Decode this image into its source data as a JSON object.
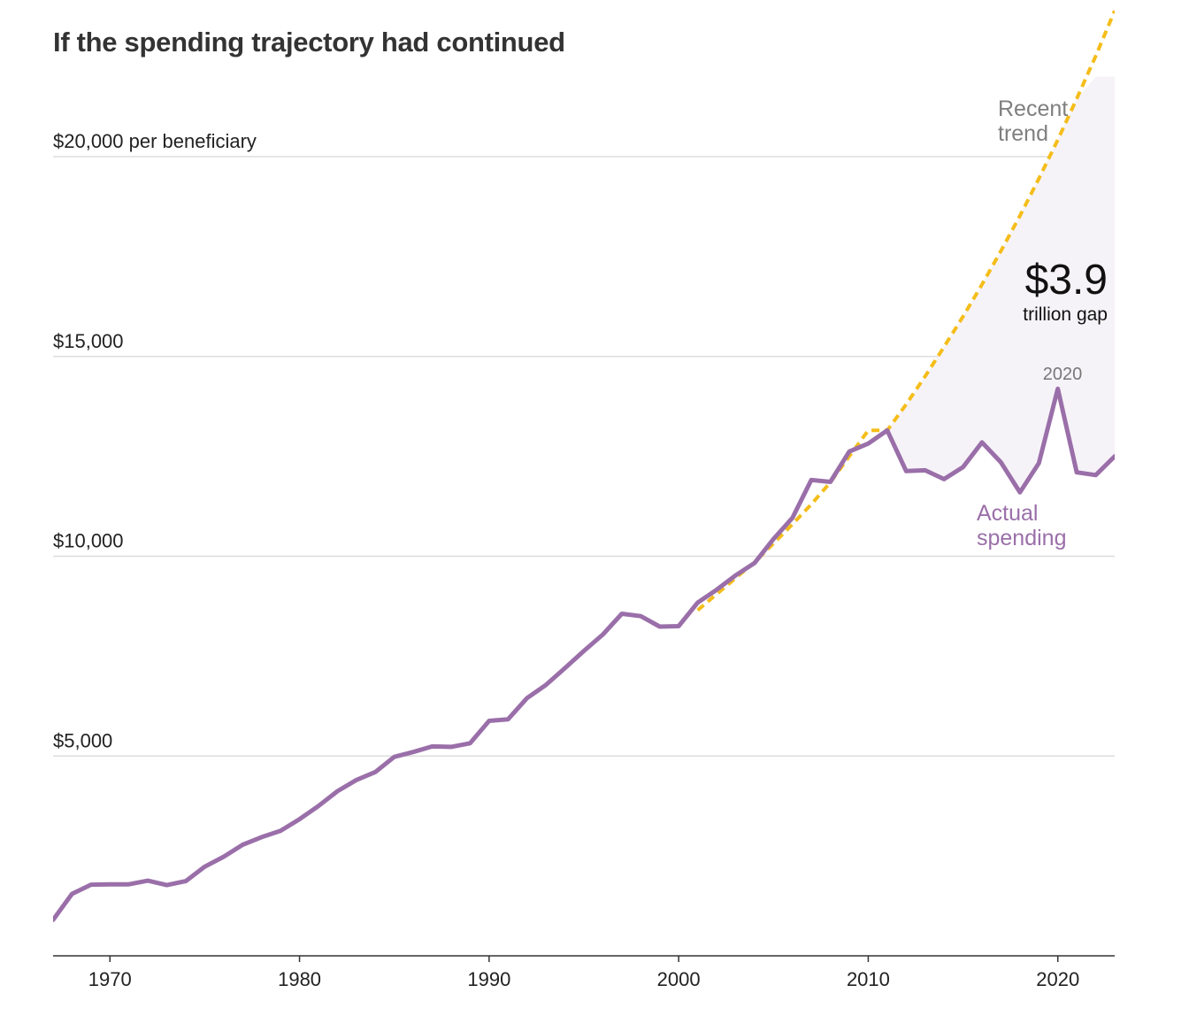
{
  "title": "If the spending trajectory had continued",
  "chart_data": {
    "type": "line",
    "title": "If the spending trajectory had continued",
    "ylim": [
      0,
      22000
    ],
    "xlim": [
      1967,
      2023
    ],
    "y_ticks": [
      {
        "value": 5000,
        "label": "$5,000"
      },
      {
        "value": 10000,
        "label": "$10,000"
      },
      {
        "value": 15000,
        "label": "$15,000"
      },
      {
        "value": 20000,
        "label": "$20,000 per beneficiary"
      }
    ],
    "x_ticks": [
      {
        "value": 1970,
        "label": "1970"
      },
      {
        "value": 1980,
        "label": "1980"
      },
      {
        "value": 1990,
        "label": "1990"
      },
      {
        "value": 2000,
        "label": "2000"
      },
      {
        "value": 2010,
        "label": "2010"
      },
      {
        "value": 2020,
        "label": "2020"
      }
    ],
    "grid": true,
    "series": [
      {
        "name": "Actual spending",
        "color": "#9a6fa9",
        "x": [
          1967,
          1968,
          1969,
          1970,
          1971,
          1972,
          1973,
          1974,
          1975,
          1976,
          1977,
          1978,
          1979,
          1980,
          1981,
          1982,
          1983,
          1984,
          1985,
          1986,
          1987,
          1988,
          1989,
          1990,
          1991,
          1992,
          1993,
          1994,
          1995,
          1996,
          1997,
          1998,
          1999,
          2000,
          2001,
          2002,
          2003,
          2004,
          2005,
          2006,
          2007,
          2008,
          2009,
          2010,
          2011,
          2012,
          2013,
          2014,
          2015,
          2016,
          2017,
          2018,
          2019,
          2020,
          2021,
          2022,
          2023
        ],
        "values": [
          900,
          1550,
          1780,
          1790,
          1790,
          1880,
          1770,
          1870,
          2230,
          2480,
          2780,
          2970,
          3130,
          3420,
          3750,
          4120,
          4400,
          4600,
          4980,
          5100,
          5240,
          5230,
          5320,
          5880,
          5920,
          6450,
          6780,
          7200,
          7630,
          8040,
          8560,
          8500,
          8240,
          8250,
          8840,
          9160,
          9520,
          9830,
          10430,
          10960,
          11910,
          11860,
          12620,
          12820,
          13150,
          12130,
          12150,
          11930,
          12230,
          12850,
          12350,
          11600,
          12330,
          14190,
          12100,
          12030,
          12500
        ]
      },
      {
        "name": "Recent trend",
        "color": "#f5bd1a",
        "dashed": true,
        "x": [
          2001,
          2002,
          2003,
          2004,
          2005,
          2006,
          2007,
          2008,
          2009,
          2010,
          2011,
          2012,
          2013,
          2014,
          2015,
          2016,
          2017,
          2018,
          2019,
          2020,
          2021,
          2022,
          2023
        ],
        "values": [
          8650,
          9050,
          9450,
          9850,
          10320,
          10800,
          11300,
          11850,
          12500,
          13150,
          13150,
          13800,
          14500,
          15240,
          16000,
          16800,
          17640,
          18520,
          19450,
          20420,
          21450,
          22520,
          23650
        ]
      }
    ],
    "annotations": {
      "trend_label": [
        "Recent",
        "trend"
      ],
      "actual_label": [
        "Actual",
        "spending"
      ],
      "gap_value": "$3.9",
      "gap_unit": "trillion gap",
      "highlight_year": "2020"
    }
  }
}
